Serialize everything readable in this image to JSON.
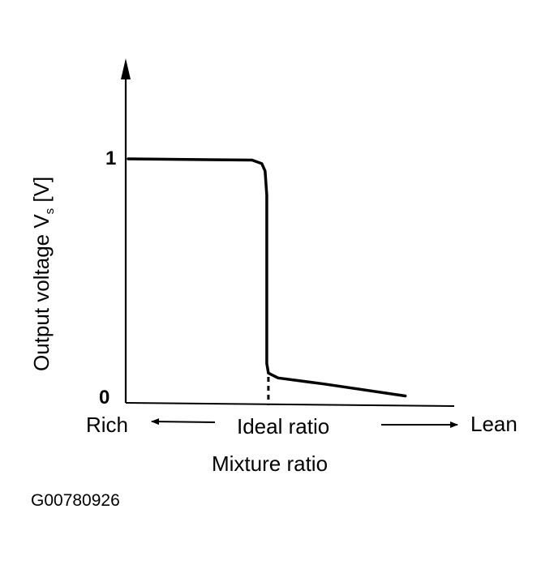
{
  "chart_data": {
    "type": "line",
    "ylabel": "Output voltage V",
    "ylabel_subscript": "s",
    "ylabel_unit": "[V]",
    "xlabel": "Mixture ratio",
    "x_annotations": {
      "left": "Rich",
      "center": "Ideal ratio",
      "right": "Lean"
    },
    "y_ticks": [
      "1",
      "0"
    ],
    "y_tick_values": [
      1,
      0
    ],
    "ylim": [
      0,
      1.3
    ],
    "xlim": [
      0,
      1
    ],
    "ideal_x": 0.43,
    "series": [
      {
        "x": [
          0,
          0.38,
          0.41,
          0.42,
          0.425,
          0.425,
          0.43,
          0.46,
          0.6,
          0.85
        ],
        "y": [
          1.0,
          0.995,
          0.98,
          0.95,
          0.85,
          0.15,
          0.11,
          0.09,
          0.065,
          0.015
        ]
      }
    ],
    "grid": false
  },
  "figure_id": "G00780926",
  "colors": {
    "ink": "#000000"
  }
}
